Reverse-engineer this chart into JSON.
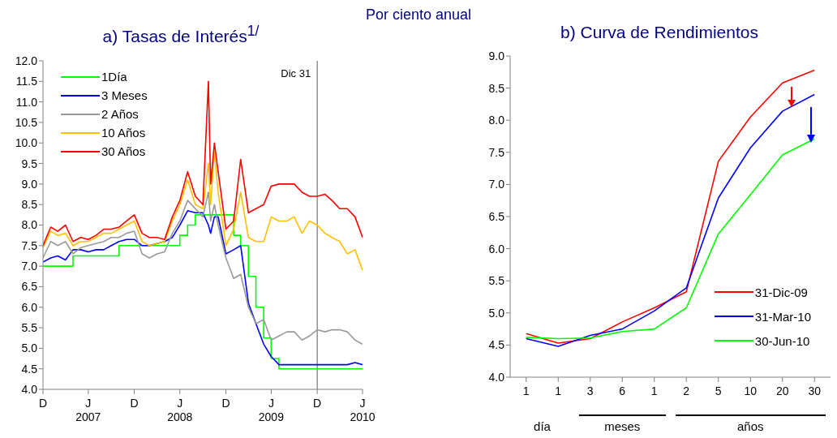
{
  "chart_data": [
    {
      "type": "line",
      "title": "a) Tasas de Interés$^{1/}$",
      "subtitle": "Por ciento anual",
      "x": [
        "2006-12-31",
        "2007-01-31",
        "2007-02-28",
        "2007-03-31",
        "2007-04-30",
        "2007-05-31",
        "2007-06-30",
        "2007-07-31",
        "2007-08-31",
        "2007-09-30",
        "2007-10-31",
        "2007-11-30",
        "2007-12-31",
        "2008-01-31",
        "2008-02-29",
        "2008-03-31",
        "2008-04-30",
        "2008-05-31",
        "2008-06-30",
        "2008-07-31",
        "2008-08-31",
        "2008-09-30",
        "2008-10-22",
        "2008-10-31",
        "2008-11-15",
        "2008-11-30",
        "2008-12-31",
        "2009-01-31",
        "2009-02-28",
        "2009-03-31",
        "2009-04-30",
        "2009-05-31",
        "2009-06-30",
        "2009-07-31",
        "2009-08-31",
        "2009-09-30",
        "2009-10-31",
        "2009-11-30",
        "2009-12-31",
        "2010-01-31",
        "2010-02-28",
        "2010-03-31",
        "2010-04-30",
        "2010-05-31",
        "2010-06-30"
      ],
      "xlim": [
        "2006-12-31",
        "2010-06-30"
      ],
      "xticks": [
        {
          "value": "2006-12-31",
          "label": "D"
        },
        {
          "value": "2007-06-30",
          "label": "J\n2007"
        },
        {
          "value": "2007-12-31",
          "label": "D"
        },
        {
          "value": "2008-06-30",
          "label": "J\n2008"
        },
        {
          "value": "2008-12-31",
          "label": "D"
        },
        {
          "value": "2009-06-30",
          "label": "J\n2009"
        },
        {
          "value": "2009-12-31",
          "label": "D"
        },
        {
          "value": "2010-06-30",
          "label": "J\n2010"
        }
      ],
      "ylim": [
        4,
        12
      ],
      "yticks": [
        {
          "value": 4,
          "label": "4.0"
        },
        4.5,
        {
          "value": 5,
          "label": "5.0"
        },
        5.5,
        {
          "value": 6,
          "label": "6.0"
        },
        6.5,
        {
          "value": 7,
          "label": "7.0"
        },
        7.5,
        {
          "value": 8,
          "label": "8.0"
        },
        8.5,
        {
          "value": 9,
          "label": "9.0"
        },
        9.5,
        {
          "value": 10,
          "label": "10.0"
        },
        10.5,
        {
          "value": 11,
          "label": "11.0"
        },
        11.5,
        {
          "value": 12,
          "label": "12.0"
        }
      ],
      "legend": "top left",
      "ref_lines": [
        {
          "axis": "x",
          "value": "2009-12-31",
          "label": "Dic 31",
          "color": "#808080"
        }
      ],
      "series": [
        {
          "name": "1Día",
          "type": "step",
          "color": "#00ff00",
          "values": [
            7.0,
            7.0,
            7.0,
            7.0,
            7.25,
            7.25,
            7.25,
            7.25,
            7.25,
            7.25,
            7.5,
            7.5,
            7.5,
            7.5,
            7.5,
            7.5,
            7.5,
            7.5,
            7.75,
            8.0,
            8.25,
            8.25,
            8.25,
            8.25,
            8.25,
            8.25,
            8.25,
            7.75,
            7.5,
            6.75,
            6.0,
            5.25,
            4.75,
            4.5,
            4.5,
            4.5,
            4.5,
            4.5,
            4.5,
            4.5,
            4.5,
            4.5,
            4.5,
            4.5,
            4.5
          ]
        },
        {
          "name": "3 Meses",
          "color": "#0000ff",
          "values": [
            7.1,
            7.2,
            7.25,
            7.15,
            7.4,
            7.4,
            7.35,
            7.4,
            7.4,
            7.5,
            7.6,
            7.65,
            7.65,
            7.5,
            7.5,
            7.55,
            7.6,
            7.7,
            8.0,
            8.35,
            8.3,
            8.3,
            8.0,
            7.8,
            8.2,
            8.2,
            7.3,
            7.4,
            7.5,
            6.1,
            5.6,
            5.1,
            4.8,
            4.6,
            4.6,
            4.6,
            4.6,
            4.6,
            4.6,
            4.6,
            4.6,
            4.6,
            4.6,
            4.65,
            4.6
          ]
        },
        {
          "name": "2 Años",
          "color": "#999999",
          "values": [
            7.2,
            7.6,
            7.5,
            7.6,
            7.3,
            7.45,
            7.5,
            7.55,
            7.6,
            7.7,
            7.7,
            7.8,
            7.85,
            7.3,
            7.2,
            7.3,
            7.35,
            7.8,
            8.1,
            8.6,
            8.4,
            8.2,
            8.8,
            8.1,
            8.5,
            8.0,
            7.2,
            6.7,
            6.8,
            6.0,
            5.6,
            5.7,
            5.2,
            5.3,
            5.4,
            5.4,
            5.2,
            5.3,
            5.45,
            5.4,
            5.45,
            5.45,
            5.4,
            5.2,
            5.1
          ]
        },
        {
          "name": "10 Años",
          "color": "#ffc000",
          "values": [
            7.45,
            7.85,
            7.75,
            7.8,
            7.5,
            7.6,
            7.6,
            7.7,
            7.8,
            7.8,
            7.9,
            8.0,
            8.1,
            7.6,
            7.5,
            7.55,
            7.6,
            8.1,
            8.5,
            9.1,
            8.5,
            8.4,
            9.5,
            8.5,
            9.8,
            8.8,
            7.5,
            7.9,
            8.8,
            7.7,
            7.6,
            7.6,
            8.2,
            8.1,
            8.1,
            8.2,
            7.8,
            8.1,
            8.0,
            7.8,
            7.7,
            7.6,
            7.3,
            7.4,
            6.9
          ]
        },
        {
          "name": "30 Años",
          "color": "#ff0000",
          "values": [
            7.5,
            7.95,
            7.85,
            8.0,
            7.6,
            7.7,
            7.65,
            7.75,
            7.9,
            7.9,
            7.95,
            8.1,
            8.25,
            7.8,
            7.7,
            7.7,
            7.65,
            8.2,
            8.6,
            9.3,
            8.7,
            8.5,
            11.5,
            9.0,
            10.0,
            9.3,
            7.9,
            8.1,
            9.6,
            8.3,
            8.4,
            8.5,
            8.95,
            9.0,
            9.0,
            9.0,
            8.8,
            8.7,
            8.7,
            8.75,
            8.6,
            8.4,
            8.4,
            8.2,
            7.7
          ]
        }
      ]
    },
    {
      "type": "line",
      "title": "b) Curva de Rendimientos",
      "categories": [
        "1",
        "1",
        "3",
        "6",
        "1",
        "2",
        "5",
        "10",
        "20",
        "30"
      ],
      "ylim": [
        4,
        9
      ],
      "yticks": [
        {
          "value": 4,
          "label": "4.0"
        },
        4.5,
        {
          "value": 5,
          "label": "5.0"
        },
        5.5,
        {
          "value": 6,
          "label": "6.0"
        },
        6.5,
        {
          "value": 7,
          "label": "7.0"
        },
        7.5,
        {
          "value": 8,
          "label": "8.0"
        },
        8.5,
        {
          "value": 9,
          "label": "9.0"
        }
      ],
      "legend": "bottom right",
      "annotations": [
        "día",
        "meses",
        "años"
      ],
      "series": [
        {
          "name": "31-Dic-09",
          "color": "#ff0000",
          "values": [
            4.68,
            4.53,
            4.6,
            4.86,
            5.08,
            5.33,
            7.36,
            8.05,
            8.58,
            8.78
          ]
        },
        {
          "name": "31-Mar-10",
          "color": "#0000ff",
          "values": [
            4.6,
            4.48,
            4.65,
            4.75,
            5.03,
            5.39,
            6.79,
            7.57,
            8.14,
            8.4
          ]
        },
        {
          "name": "30-Jun-10",
          "color": "#00ff00",
          "values": [
            4.62,
            4.6,
            4.61,
            4.71,
            4.75,
            5.08,
            6.23,
            6.84,
            7.46,
            7.71
          ]
        }
      ]
    }
  ]
}
